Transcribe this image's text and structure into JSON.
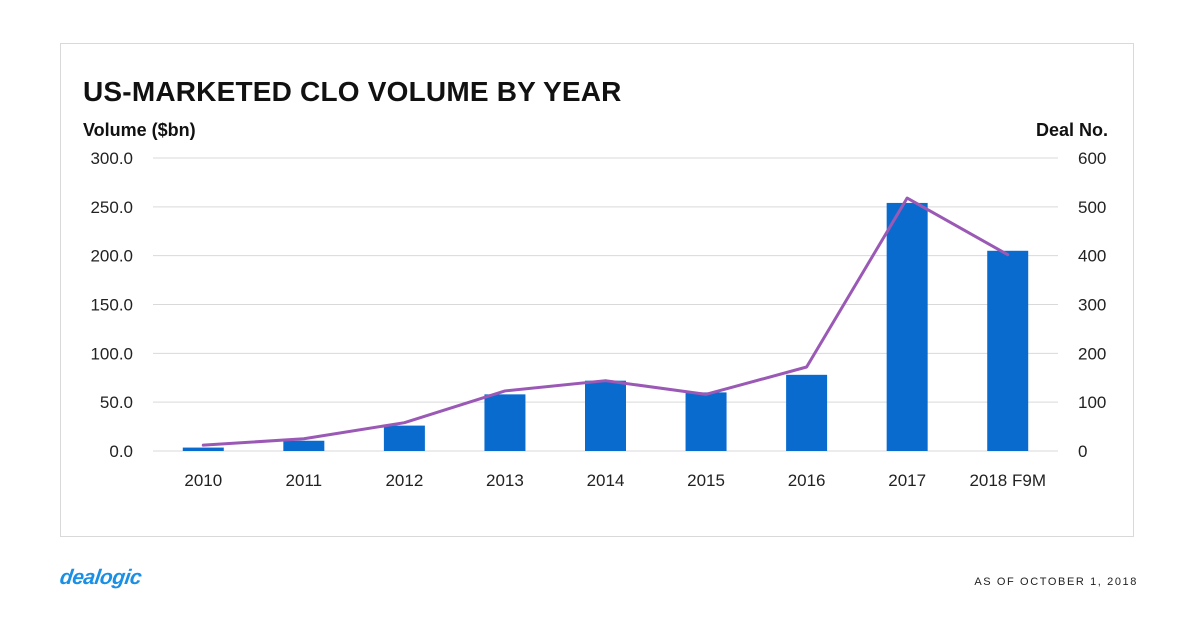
{
  "footer": {
    "logo_text": "dealogic",
    "as_of": "AS OF OCTOBER 1, 2018"
  },
  "colors": {
    "bar": "#0a6bcf",
    "line": "#9b59b6",
    "grid": "#d9d9d9",
    "logo": "#1a8fe6"
  },
  "chart_data": {
    "type": "bar",
    "title": "US-MARKETED CLO VOLUME BY YEAR",
    "xlabel": "",
    "ylabel": "Volume ($bn)",
    "y2label": "Deal No.",
    "categories": [
      "2010",
      "2011",
      "2012",
      "2013",
      "2014",
      "2015",
      "2016",
      "2017",
      "2018 F9M"
    ],
    "ylim": [
      0,
      300
    ],
    "y2lim": [
      0,
      600
    ],
    "yticks": [
      "0.0",
      "50.0",
      "100.0",
      "150.0",
      "200.0",
      "250.0",
      "300.0"
    ],
    "y2ticks": [
      "0",
      "100",
      "200",
      "300",
      "400",
      "500",
      "600"
    ],
    "grid": true,
    "legend": "none",
    "series": [
      {
        "name": "Volume ($bn)",
        "type": "bar",
        "axis": "left",
        "values": [
          3.5,
          10.5,
          26,
          58,
          72,
          60,
          78,
          254,
          205
        ]
      },
      {
        "name": "Deal No.",
        "type": "line",
        "axis": "right",
        "values": [
          12,
          25,
          58,
          123,
          144,
          116,
          172,
          518,
          402
        ]
      }
    ]
  }
}
